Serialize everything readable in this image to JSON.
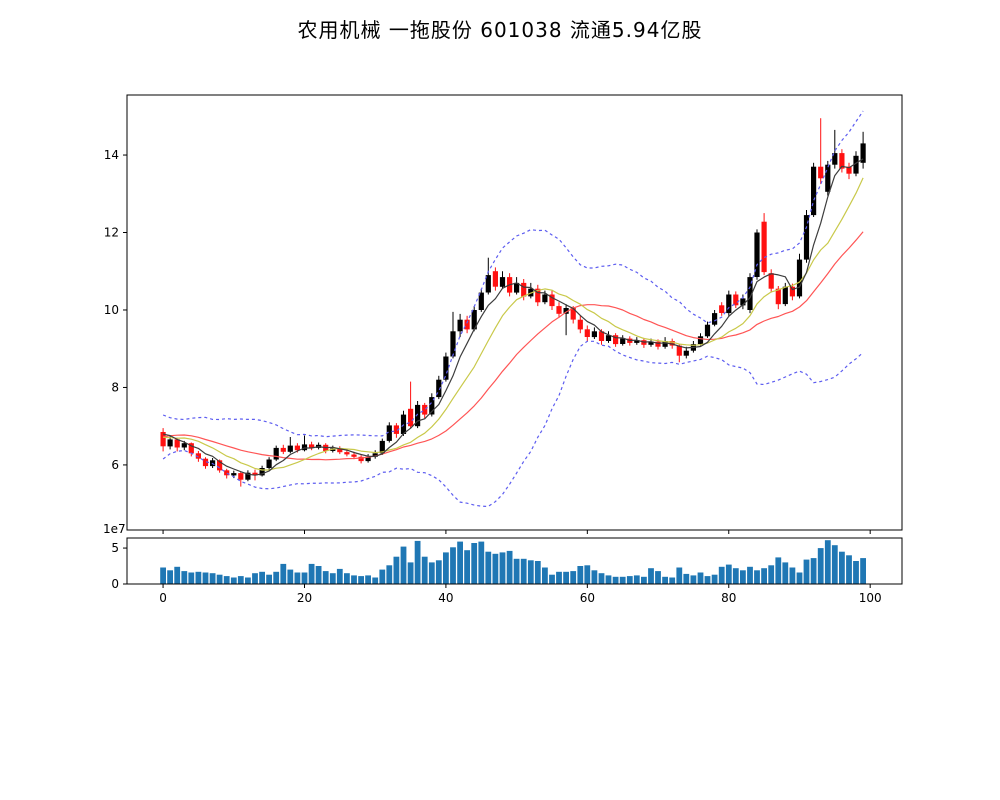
{
  "title": "农用机械  一拖股份  601038  流通5.94亿股",
  "chart_data": [
    {
      "type": "candlestick",
      "xlabel": "",
      "ylabel": "",
      "xlim": [
        -5.1,
        104.5
      ],
      "ylim": [
        4.32,
        15.55
      ],
      "xticks": [
        0,
        20,
        40,
        60,
        80,
        100
      ],
      "yticks": [
        6,
        8,
        10,
        12,
        14
      ],
      "grid": false,
      "legend": "none",
      "colors": {
        "up": "#000000",
        "down": "#ff1111",
        "spine": "#000000"
      },
      "open": [
        6.85,
        6.48,
        6.66,
        6.45,
        6.56,
        6.3,
        6.16,
        5.97,
        6.12,
        5.86,
        5.73,
        5.79,
        5.62,
        5.8,
        5.73,
        5.92,
        6.14,
        6.44,
        6.34,
        6.5,
        6.38,
        6.53,
        6.44,
        6.52,
        6.36,
        6.43,
        6.33,
        6.27,
        6.21,
        6.1,
        6.21,
        6.3,
        6.62,
        7.02,
        6.8,
        7.45,
        7.0,
        7.55,
        7.3,
        7.75,
        8.2,
        8.8,
        9.45,
        9.75,
        9.5,
        10.0,
        10.45,
        11.0,
        10.6,
        10.85,
        10.45,
        10.7,
        10.35,
        10.55,
        10.2,
        10.4,
        10.1,
        9.9,
        10.05,
        9.75,
        9.5,
        9.3,
        9.45,
        9.2,
        9.35,
        9.12,
        9.26,
        9.15,
        9.22,
        9.1,
        9.18,
        9.05,
        9.2,
        9.08,
        8.82,
        8.95,
        9.12,
        9.32,
        9.62,
        10.12,
        9.92,
        10.4,
        10.12,
        10.0,
        10.85,
        12.28,
        10.95,
        10.55,
        10.15,
        10.6,
        10.35,
        11.3,
        12.45,
        13.7,
        13.05,
        13.75,
        14.05,
        13.7,
        13.52,
        13.8
      ],
      "high": [
        6.95,
        6.75,
        6.7,
        6.62,
        6.58,
        6.36,
        6.2,
        6.18,
        6.14,
        5.9,
        5.85,
        5.82,
        5.86,
        5.88,
        5.98,
        6.2,
        6.5,
        6.52,
        6.72,
        6.56,
        6.76,
        6.6,
        6.58,
        6.56,
        6.5,
        6.48,
        6.4,
        6.34,
        6.25,
        6.28,
        6.38,
        6.68,
        7.1,
        7.08,
        7.4,
        8.15,
        7.65,
        7.6,
        7.85,
        8.3,
        8.9,
        9.95,
        9.9,
        9.85,
        10.1,
        10.55,
        11.35,
        11.1,
        11.0,
        10.95,
        10.85,
        10.8,
        10.7,
        10.65,
        10.5,
        10.5,
        10.2,
        10.15,
        10.1,
        9.85,
        9.6,
        9.55,
        9.5,
        9.45,
        9.4,
        9.35,
        9.32,
        9.3,
        9.28,
        9.26,
        9.24,
        9.3,
        9.26,
        9.12,
        9.05,
        9.2,
        9.4,
        9.7,
        10.0,
        10.2,
        10.5,
        10.48,
        10.4,
        10.95,
        12.08,
        12.5,
        11.05,
        10.62,
        10.7,
        10.68,
        11.45,
        12.58,
        13.8,
        14.95,
        13.85,
        14.65,
        14.15,
        13.8,
        14.1,
        14.6
      ],
      "low": [
        6.35,
        6.4,
        6.35,
        6.38,
        6.22,
        6.08,
        5.9,
        5.92,
        5.8,
        5.65,
        5.66,
        5.44,
        5.58,
        5.6,
        5.7,
        5.88,
        6.1,
        6.28,
        6.3,
        6.32,
        6.35,
        6.38,
        6.4,
        6.3,
        6.32,
        6.28,
        6.22,
        6.15,
        6.04,
        6.06,
        6.16,
        6.26,
        6.58,
        6.7,
        6.75,
        6.95,
        6.95,
        7.2,
        7.25,
        7.7,
        8.15,
        8.75,
        9.3,
        9.4,
        9.45,
        9.95,
        10.4,
        10.5,
        10.55,
        10.35,
        10.4,
        10.25,
        10.3,
        10.1,
        10.15,
        10.0,
        9.8,
        9.35,
        9.65,
        9.4,
        9.2,
        9.25,
        9.1,
        9.15,
        9.05,
        9.08,
        9.08,
        9.1,
        9.02,
        9.05,
        8.98,
        9.0,
        9.0,
        8.65,
        8.75,
        8.9,
        9.08,
        9.28,
        9.58,
        9.85,
        9.85,
        10.05,
        10.02,
        9.92,
        10.78,
        10.9,
        10.45,
        10.02,
        10.1,
        10.25,
        10.3,
        11.22,
        12.4,
        13.25,
        12.95,
        13.65,
        13.55,
        13.38,
        13.45,
        13.65
      ],
      "close": [
        6.48,
        6.66,
        6.45,
        6.56,
        6.3,
        6.16,
        5.97,
        6.12,
        5.86,
        5.73,
        5.79,
        5.62,
        5.8,
        5.73,
        5.92,
        6.14,
        6.44,
        6.34,
        6.5,
        6.38,
        6.53,
        6.44,
        6.52,
        6.36,
        6.43,
        6.33,
        6.27,
        6.21,
        6.1,
        6.21,
        6.3,
        6.62,
        7.02,
        6.8,
        7.3,
        7.0,
        7.55,
        7.3,
        7.75,
        8.2,
        8.8,
        9.45,
        9.75,
        9.5,
        10.0,
        10.45,
        10.9,
        10.6,
        10.85,
        10.45,
        10.7,
        10.35,
        10.55,
        10.2,
        10.4,
        10.1,
        9.9,
        10.05,
        9.75,
        9.5,
        9.3,
        9.45,
        9.2,
        9.35,
        9.12,
        9.26,
        9.15,
        9.22,
        9.1,
        9.18,
        9.05,
        9.2,
        9.08,
        8.82,
        8.95,
        9.12,
        9.32,
        9.62,
        9.92,
        9.92,
        10.4,
        10.12,
        10.3,
        10.85,
        12.0,
        10.98,
        10.55,
        10.15,
        10.6,
        10.35,
        11.3,
        12.45,
        13.7,
        13.4,
        13.75,
        14.05,
        13.65,
        13.52,
        13.98,
        14.3
      ],
      "overlays": {
        "ma": [
          {
            "name": "MA5",
            "window": 5,
            "color": "#3d3d3d"
          },
          {
            "name": "MA10",
            "window": 10,
            "color": "#c9c94a"
          },
          {
            "name": "MA20",
            "window": 20,
            "color": "#ff5555"
          }
        ],
        "bollinger": {
          "name": "Bollinger ±2σ (20)",
          "window": 20,
          "k": 2,
          "color": "#5d5df0",
          "style": "dashed"
        },
        "warmup_closes": [
          5.9,
          6.0,
          6.2,
          6.45,
          6.7,
          6.95,
          7.1,
          7.15,
          7.0,
          6.85,
          6.9,
          6.75,
          6.6,
          6.5,
          6.6,
          6.7,
          6.85,
          6.95,
          6.9,
          6.8
        ]
      }
    },
    {
      "type": "bar",
      "name": "volume",
      "color": "#1f77b4",
      "offset_label": "1e7",
      "unit_multiplier": 10000000,
      "xlim": [
        -5.1,
        104.5
      ],
      "ylim": [
        0,
        6.4
      ],
      "xticks": [
        0,
        20,
        40,
        60,
        80,
        100
      ],
      "yticks": [
        0,
        5
      ],
      "values": [
        2.3,
        1.9,
        2.4,
        1.8,
        1.6,
        1.7,
        1.6,
        1.5,
        1.3,
        1.1,
        0.9,
        1.1,
        0.9,
        1.5,
        1.7,
        1.3,
        1.7,
        2.8,
        2.0,
        1.6,
        1.6,
        2.8,
        2.5,
        1.8,
        1.5,
        2.1,
        1.5,
        1.2,
        1.1,
        1.2,
        0.9,
        2.0,
        2.6,
        3.8,
        5.2,
        3.0,
        6.0,
        3.8,
        3.0,
        3.3,
        4.4,
        5.1,
        5.9,
        4.7,
        5.7,
        5.9,
        4.5,
        4.2,
        4.4,
        4.6,
        3.5,
        3.5,
        3.3,
        3.2,
        2.3,
        1.3,
        1.7,
        1.7,
        1.8,
        2.5,
        2.6,
        1.9,
        1.5,
        1.2,
        1.0,
        1.0,
        1.1,
        1.2,
        1.0,
        2.2,
        1.8,
        1.0,
        0.9,
        2.3,
        1.4,
        1.2,
        1.6,
        1.1,
        1.3,
        2.4,
        2.7,
        2.2,
        1.9,
        2.4,
        1.9,
        2.2,
        2.6,
        3.7,
        3.0,
        2.3,
        1.6,
        3.4,
        3.6,
        5.0,
        6.1,
        5.4,
        4.5,
        4.0,
        3.2,
        3.6
      ]
    }
  ]
}
